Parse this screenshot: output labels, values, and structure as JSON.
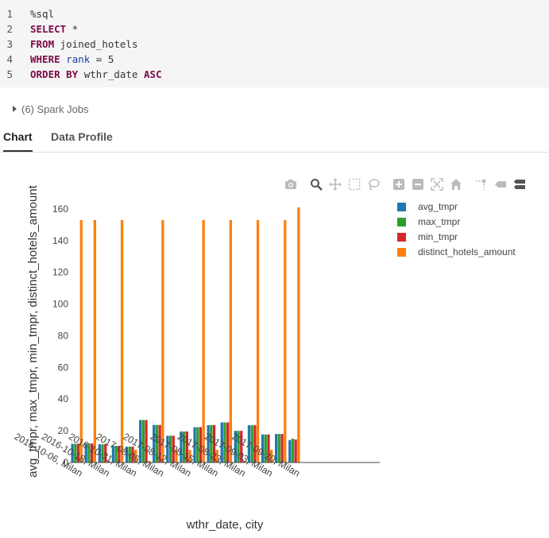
{
  "code": {
    "lines": [
      {
        "num": "1",
        "parts": [
          {
            "t": "%sql",
            "c": ""
          }
        ]
      },
      {
        "num": "2",
        "parts": [
          {
            "t": "SELECT",
            "c": "kw"
          },
          {
            "t": " *",
            "c": ""
          }
        ]
      },
      {
        "num": "3",
        "parts": [
          {
            "t": "FROM",
            "c": "kw"
          },
          {
            "t": " joined_hotels",
            "c": ""
          }
        ]
      },
      {
        "num": "4",
        "parts": [
          {
            "t": "WHERE",
            "c": "kw"
          },
          {
            "t": " ",
            "c": ""
          },
          {
            "t": "rank",
            "c": "kb"
          },
          {
            "t": " = 5",
            "c": ""
          }
        ]
      },
      {
        "num": "5",
        "parts": [
          {
            "t": "ORDER BY",
            "c": "kw"
          },
          {
            "t": " wthr_date ",
            "c": ""
          },
          {
            "t": "ASC",
            "c": "kw"
          }
        ]
      }
    ]
  },
  "spark_jobs": "(6) Spark Jobs",
  "tabs": {
    "chart": "Chart",
    "data_profile": "Data Profile"
  },
  "toolbar_icons": [
    "camera-icon",
    "zoom-icon",
    "pan-icon",
    "box-select-icon",
    "lasso-icon",
    "zoom-in-icon",
    "zoom-out-icon",
    "autoscale-icon",
    "home-icon",
    "spike-lines-icon",
    "hover-closest-icon",
    "hover-compare-icon"
  ],
  "chart_data": {
    "type": "bar",
    "xlabel": "wthr_date, city",
    "ylabel": "avg_tmpr, max_tmpr, min_tmpr, distinct_hotels_amount",
    "ylim": [
      0,
      165
    ],
    "yticks": [
      0,
      20,
      40,
      60,
      80,
      100,
      120,
      140,
      160
    ],
    "categories": [
      "2016-10-06, Milan",
      "2016-10-09, Milan",
      "2016-10-12, Milan",
      "2016-10-18, Milan",
      "2016-10-25, Milan",
      "2016-10-31, Milan",
      "2017-08-03, Milan",
      "2017-08-06, Milan",
      "2017-08-09, Milan",
      "2017-08-12, Milan",
      "2017-08-14, Milan",
      "2017-08-15, Milan",
      "2017-08-20, Milan",
      "2017-08-23, Milan",
      "2017-08-29, Milan",
      "2017-09-03, Milan",
      "2017-09-10, Milan",
      "2017-09-20, Milan"
    ],
    "visible_tick_labels": [
      "2016-10-06, Milan",
      "2016-10-18, Milan",
      "2016-10-31, Milan",
      "2017-08-06, Milan",
      "2017-08-12, Milan",
      "2017-08-15, Milan",
      "2017-08-23, Milan",
      "2017-09-03, Milan",
      "2017-09-20, Milan"
    ],
    "legend_position": "top-right",
    "grid": false,
    "series": [
      {
        "name": "avg_tmpr",
        "color": "#1f77b4",
        "values": [
          11.8,
          12.0,
          11.5,
          10.5,
          10.0,
          26.8,
          23.7,
          16.9,
          19.6,
          22.3,
          23.6,
          25.3,
          20.0,
          23.5,
          17.7,
          18.0,
          14.2,
          0
        ]
      },
      {
        "name": "max_tmpr",
        "color": "#2ca02c",
        "values": [
          11.8,
          12.0,
          11.5,
          10.5,
          10.0,
          26.8,
          23.7,
          16.9,
          19.6,
          22.3,
          23.6,
          25.3,
          20.0,
          23.5,
          17.7,
          18.0,
          15.0,
          0
        ]
      },
      {
        "name": "min_tmpr",
        "color": "#d62728",
        "values": [
          11.8,
          12.0,
          11.5,
          10.5,
          10.0,
          26.8,
          23.7,
          16.9,
          19.6,
          22.3,
          23.6,
          25.3,
          20.0,
          23.5,
          17.7,
          18.0,
          14.5,
          0
        ]
      },
      {
        "name": "distinct_hotels_amount",
        "color": "#ff7f0e",
        "values": [
          153,
          153,
          1,
          153,
          8,
          1,
          153,
          8,
          8,
          153,
          8,
          153,
          1,
          153,
          8,
          153,
          161,
          0
        ]
      }
    ]
  }
}
